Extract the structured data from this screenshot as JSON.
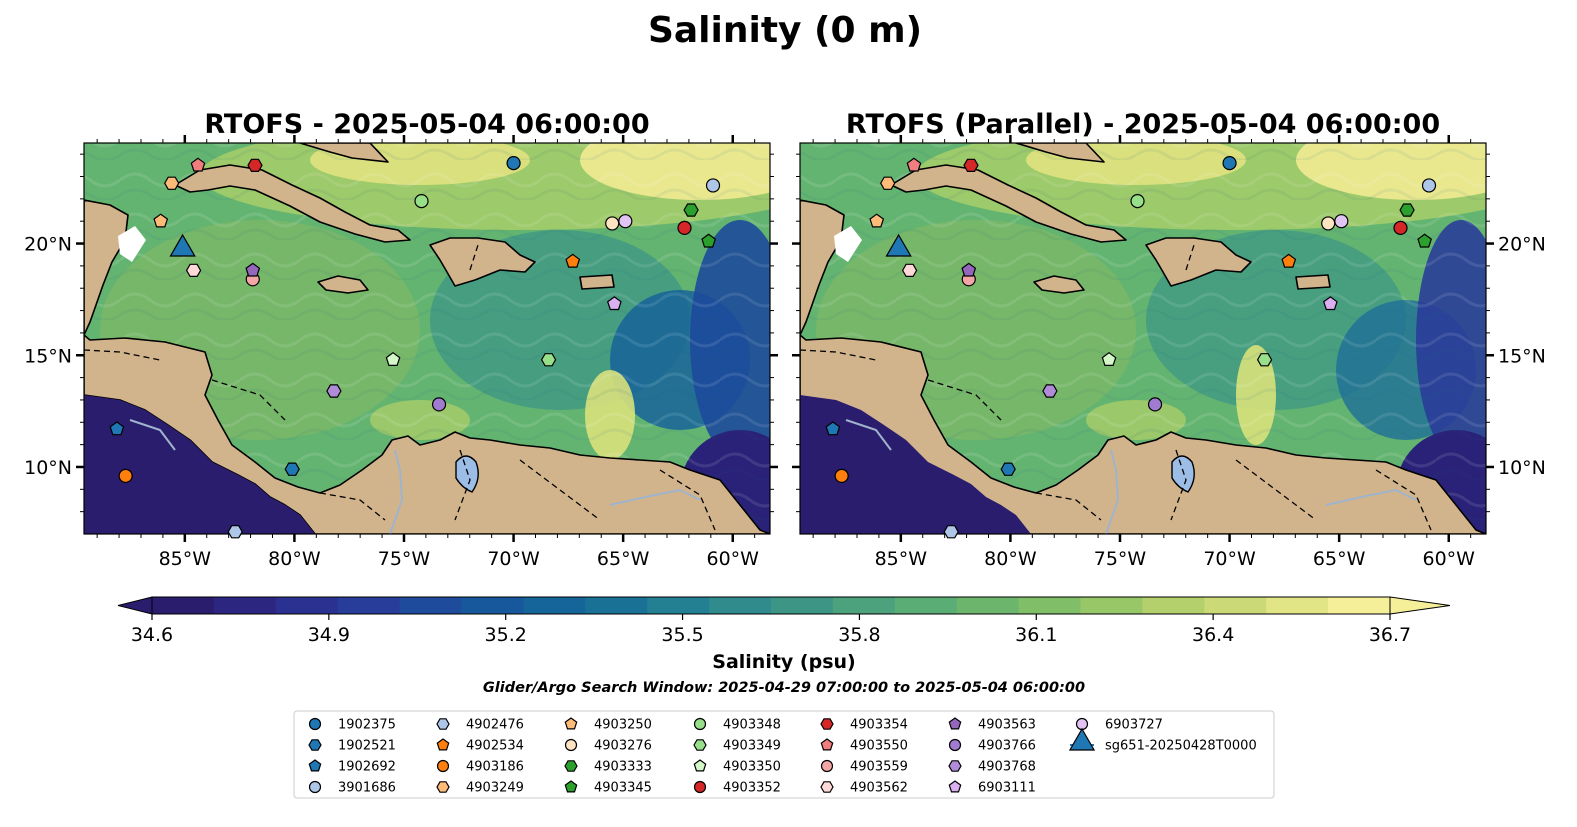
{
  "figure": {
    "title": "Salinity (0 m)",
    "search_window": "Glider/Argo Search Window: 2025-04-29 07:00:00 to 2025-05-04 06:00:00"
  },
  "chart_data": [
    {
      "type": "heatmap",
      "title": "RTOFS - 2025-05-04 06:00:00",
      "xlim": [
        -89.6,
        -58.3
      ],
      "ylim": [
        7.0,
        24.5
      ],
      "x_ticks": [
        "85°W",
        "80°W",
        "75°W",
        "70°W",
        "65°W",
        "60°W"
      ],
      "y_ticks": [
        "20°N",
        "15°N",
        "10°N"
      ],
      "y_axis_side": "left"
    },
    {
      "type": "heatmap",
      "title": "RTOFS (Parallel) - 2025-05-04 06:00:00",
      "xlim": [
        -89.6,
        -58.3
      ],
      "ylim": [
        7.0,
        24.5
      ],
      "x_ticks": [
        "85°W",
        "80°W",
        "75°W",
        "70°W",
        "65°W",
        "60°W"
      ],
      "y_ticks": [
        "20°N",
        "15°N",
        "10°N"
      ],
      "y_axis_side": "right"
    }
  ],
  "colorbar": {
    "label": "Salinity (psu)",
    "vmin": 34.6,
    "vmax": 36.7,
    "extend": "both",
    "ticks": [
      "34.6",
      "34.9",
      "35.2",
      "35.5",
      "35.8",
      "36.1",
      "36.4",
      "36.7"
    ],
    "colors": [
      "#2b1d6e",
      "#2c2680",
      "#2b3190",
      "#283d99",
      "#1f4b9c",
      "#17589c",
      "#16659a",
      "#197296",
      "#237f92",
      "#2f8b8c",
      "#3d9685",
      "#4ca27d",
      "#5aad74",
      "#6bb66c",
      "#80be68",
      "#98c767",
      "#b3d06c",
      "#ccd977",
      "#e2e586",
      "#f5ef99"
    ]
  },
  "land_color": "#d2b48c",
  "platforms": [
    {
      "id": "1902375",
      "marker": "circle",
      "color": "#1f77b4",
      "lon": -70.0,
      "lat": 23.6
    },
    {
      "id": "1902521",
      "marker": "hexagon",
      "color": "#1f77b4",
      "lon": -80.1,
      "lat": 9.9
    },
    {
      "id": "1902692",
      "marker": "pentagon",
      "color": "#1f77b4",
      "lon": -88.1,
      "lat": 11.7
    },
    {
      "id": "3901686",
      "marker": "circle",
      "color": "#aec7e8",
      "lon": -60.9,
      "lat": 22.6
    },
    {
      "id": "4902476",
      "marker": "hexagon",
      "color": "#aec7e8",
      "lon": -82.7,
      "lat": 7.1
    },
    {
      "id": "4902534",
      "marker": "pentagon",
      "color": "#ff7f0e",
      "lon": -67.3,
      "lat": 19.2
    },
    {
      "id": "4903186",
      "marker": "circle",
      "color": "#ff7f0e",
      "lon": -87.7,
      "lat": 9.6
    },
    {
      "id": "4903249",
      "marker": "hexagon",
      "color": "#ffbb78",
      "lon": -85.6,
      "lat": 22.7
    },
    {
      "id": "4903250",
      "marker": "pentagon",
      "color": "#ffbb78",
      "lon": -86.1,
      "lat": 21.0
    },
    {
      "id": "4903276",
      "marker": "circle",
      "color": "#ffe4c4",
      "lon": -65.5,
      "lat": 20.9
    },
    {
      "id": "4903333",
      "marker": "hexagon",
      "color": "#2ca02c",
      "lon": -61.9,
      "lat": 21.5
    },
    {
      "id": "4903345",
      "marker": "pentagon",
      "color": "#2ca02c",
      "lon": -61.1,
      "lat": 20.1
    },
    {
      "id": "4903348",
      "marker": "circle",
      "color": "#98df8a",
      "lon": -74.2,
      "lat": 21.9
    },
    {
      "id": "4903349",
      "marker": "hexagon",
      "color": "#98df8a",
      "lon": -68.4,
      "lat": 14.8
    },
    {
      "id": "4903350",
      "marker": "pentagon",
      "color": "#d4f7c8",
      "lon": -75.5,
      "lat": 14.8
    },
    {
      "id": "4903352",
      "marker": "circle",
      "color": "#d62728",
      "lon": -62.2,
      "lat": 20.7
    },
    {
      "id": "4903354",
      "marker": "hexagon",
      "color": "#d62728",
      "lon": -81.8,
      "lat": 23.5
    },
    {
      "id": "4903550",
      "marker": "pentagon",
      "color": "#f07e7e",
      "lon": -84.4,
      "lat": 23.5
    },
    {
      "id": "4903559",
      "marker": "circle",
      "color": "#f4a6a6",
      "lon": -81.9,
      "lat": 18.4
    },
    {
      "id": "4903562",
      "marker": "hexagon",
      "color": "#ffd8d8",
      "lon": -84.6,
      "lat": 18.8
    },
    {
      "id": "4903563",
      "marker": "pentagon",
      "color": "#9467bd",
      "lon": -81.9,
      "lat": 18.8
    },
    {
      "id": "4903766",
      "marker": "circle",
      "color": "#a07cd0",
      "lon": -73.4,
      "lat": 12.8
    },
    {
      "id": "4903768",
      "marker": "hexagon",
      "color": "#b08cd8",
      "lon": -78.2,
      "lat": 13.4
    },
    {
      "id": "6903111",
      "marker": "pentagon",
      "color": "#dab0f0",
      "lon": -65.4,
      "lat": 17.3
    },
    {
      "id": "6903727",
      "marker": "circle",
      "color": "#e2c4f4",
      "lon": -64.9,
      "lat": 21.0
    },
    {
      "id": "sg651-20250428T0000",
      "marker": "triangle",
      "color": "#1f77b4",
      "lon": -85.1,
      "lat": 19.8
    }
  ]
}
